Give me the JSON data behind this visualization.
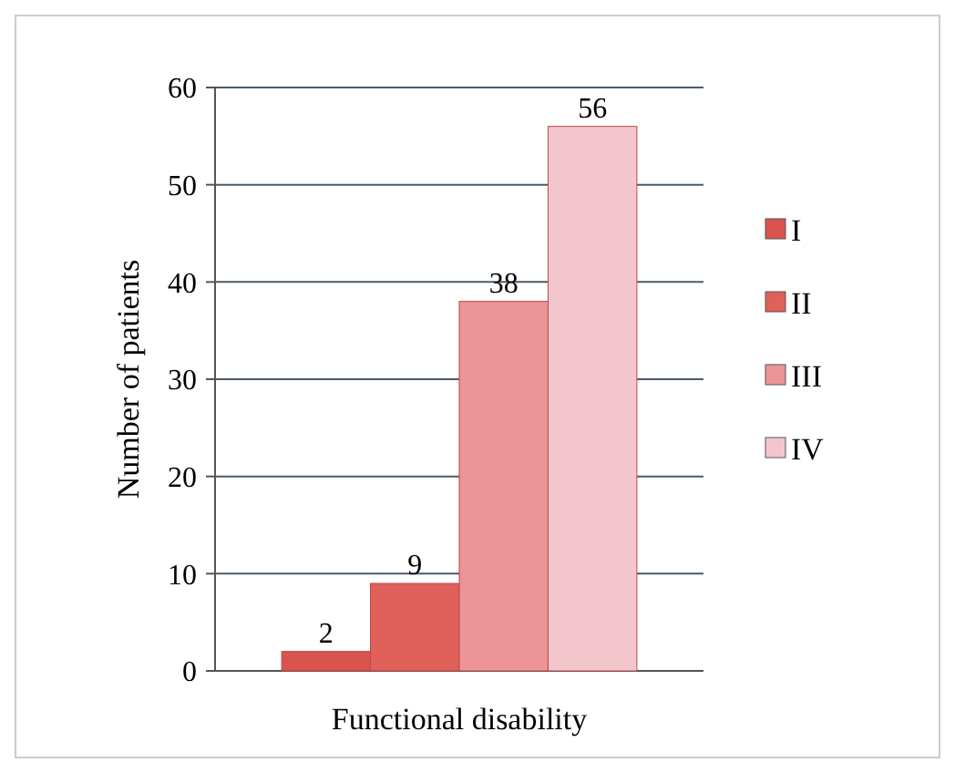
{
  "chart_data": {
    "type": "bar",
    "xlabel": "Functional disability",
    "ylabel": "Number of patients",
    "categories": [
      null
    ],
    "series": [
      {
        "name": "I",
        "color": "#d9534f",
        "values": [
          2
        ]
      },
      {
        "name": "II",
        "color": "#e0605a",
        "values": [
          9
        ]
      },
      {
        "name": "III",
        "color": "#ec9498",
        "values": [
          38
        ]
      },
      {
        "name": "IV",
        "color": "#f3c6ce",
        "values": [
          56
        ]
      }
    ],
    "ylim": [
      0,
      60
    ],
    "yticks": [
      0,
      10,
      20,
      30,
      40,
      50,
      60
    ],
    "grid": "y",
    "legend": "right",
    "data_labels": true
  }
}
